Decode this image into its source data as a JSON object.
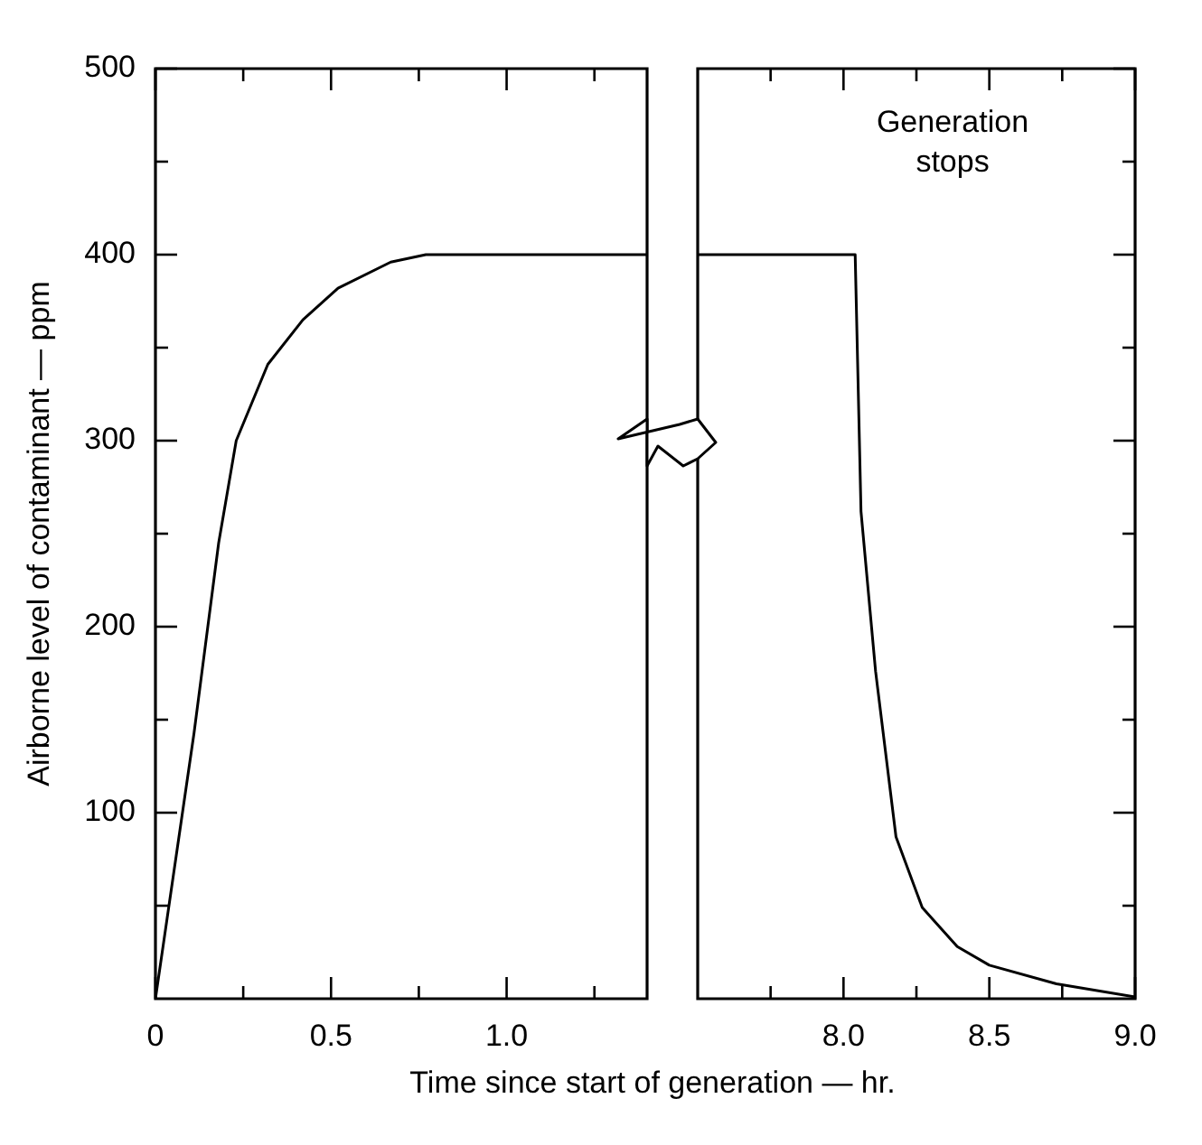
{
  "chart_data": [
    {
      "type": "line",
      "ylabel": "Airborne level of contaminant — ppm",
      "xlabel": "Time since start of generation — hr.",
      "color": "#000000",
      "x": [
        0,
        0.11,
        0.18,
        0.23,
        0.32,
        0.42,
        0.52,
        0.67,
        0.77,
        1.4
      ],
      "values": [
        0,
        143,
        245,
        300,
        341,
        365,
        382,
        396,
        400,
        400
      ],
      "xlim": [
        0,
        1.4
      ],
      "xticks": [
        0,
        {
          "value": 0.25,
          "label": null
        },
        0.5,
        {
          "value": 0.75,
          "label": null
        },
        {
          "value": 1,
          "label": "1.0"
        },
        {
          "value": 1.25,
          "label": null
        }
      ],
      "ylim": [
        0,
        500
      ],
      "yticks": [
        {
          "value": 50,
          "label": null
        },
        100,
        {
          "value": 150,
          "label": null
        },
        200,
        {
          "value": 250,
          "label": null
        },
        300,
        {
          "value": 350,
          "label": null
        },
        400,
        {
          "value": 450,
          "label": null
        },
        500
      ],
      "grid": false
    },
    {
      "type": "line",
      "color": "#000000",
      "annotations": [
        "Generation stops"
      ],
      "tick_labels": "x",
      "x": [
        7.5,
        8.04,
        8.06,
        8.11,
        8.18,
        8.27,
        8.39,
        8.5,
        8.73,
        9.0
      ],
      "values": [
        400,
        400,
        262,
        176,
        87,
        49,
        28,
        18,
        8,
        1
      ],
      "xlim": [
        7.5,
        9.0
      ],
      "xticks": [
        {
          "value": 7.75,
          "label": null
        },
        {
          "value": 8,
          "label": "8.0"
        },
        {
          "value": 8.25,
          "label": null
        },
        8.5,
        {
          "value": 8.75,
          "label": null
        },
        {
          "value": 9,
          "label": "9.0"
        }
      ],
      "ylim": [
        0,
        500
      ],
      "yticks": [
        {
          "value": 50,
          "label": null
        },
        100,
        {
          "value": 150,
          "label": null
        },
        200,
        {
          "value": 250,
          "label": null
        },
        300,
        {
          "value": 350,
          "label": null
        },
        400,
        {
          "value": 450,
          "label": null
        },
        500
      ],
      "grid": false
    }
  ]
}
